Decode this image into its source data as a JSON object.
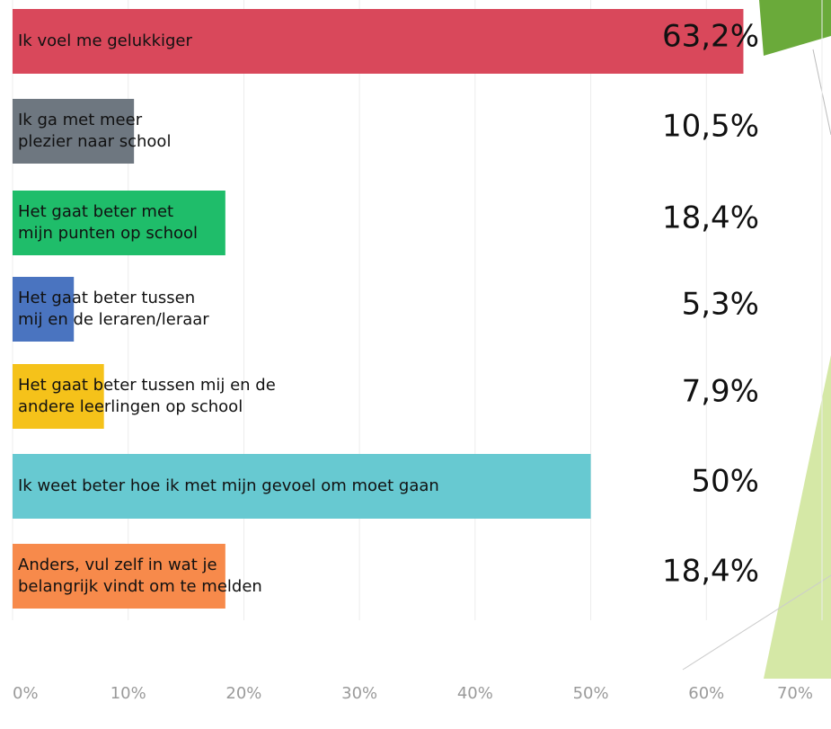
{
  "chart_data": {
    "type": "barh",
    "categories": [
      "Ik voel me gelukkiger",
      "Ik ga met meer\nplezier naar school",
      "Het gaat beter met\nmijn punten op school",
      "Het gaat beter tussen\nmij en de leraren/leraar",
      "Het gaat beter tussen mij en de\nandere leerlingen op school",
      "Ik weet beter hoe ik met mijn gevoel om moet gaan",
      "Anders, vul zelf in wat je\nbelangrijk vindt om te melden"
    ],
    "values": [
      63.2,
      10.5,
      18.4,
      5.3,
      7.9,
      50,
      18.4
    ],
    "value_labels": [
      "63,2%",
      "10,5%",
      "18,4%",
      "5,3%",
      "7,9%",
      "50%",
      "18,4%"
    ],
    "colors": [
      "#d9485b",
      "#6e7780",
      "#1fbd6a",
      "#4a74c0",
      "#f5c21a",
      "#67c9d1",
      "#f78a4b"
    ],
    "xlim": [
      0,
      70
    ],
    "xticks": [
      {
        "value": 0,
        "label": "0%"
      },
      {
        "value": 10,
        "label": "10%"
      },
      {
        "value": 20,
        "label": "20%"
      },
      {
        "value": 30,
        "label": "30%"
      },
      {
        "value": 40,
        "label": "40%"
      },
      {
        "value": 50,
        "label": "50%"
      },
      {
        "value": 60,
        "label": "60%"
      },
      {
        "value": 70,
        "label": "70%"
      }
    ],
    "grid": true
  }
}
